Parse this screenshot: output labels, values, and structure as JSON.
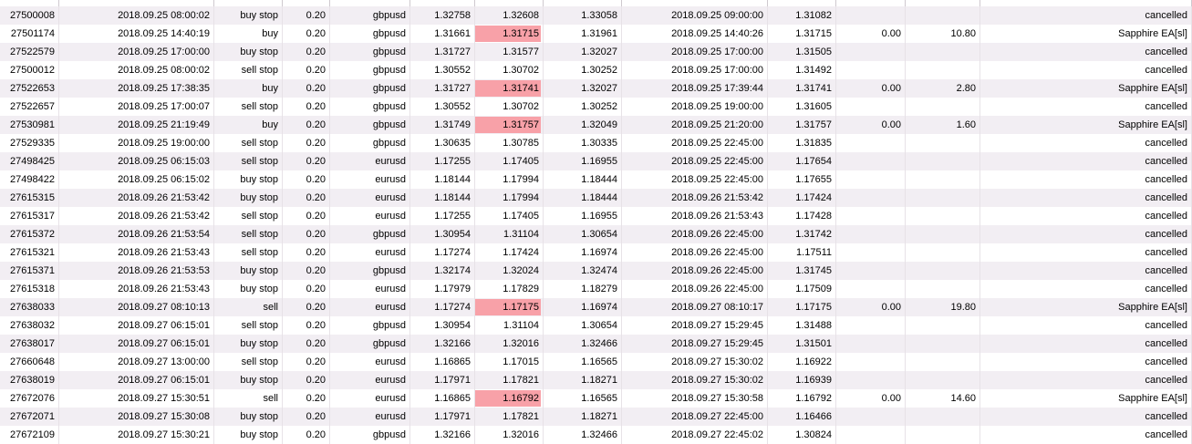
{
  "app": "trade-history-order-list",
  "colors": {
    "sl_hit_highlight": "#f8a1a8",
    "row_stripe": "#f2eef3",
    "grid_line": "#e7e2e7"
  },
  "table": {
    "column_keys": [
      "order",
      "open_time",
      "type",
      "volume",
      "symbol",
      "price",
      "sl",
      "tp",
      "close_time",
      "close_price",
      "commission",
      "profit",
      "comment"
    ],
    "rows": [
      {
        "cells": [
          "27500008",
          "2018.09.25 08:00:02",
          "buy stop",
          "0.20",
          "gbpusd",
          "1.32758",
          "1.32608",
          "1.33058",
          "2018.09.25 09:00:00",
          "1.31082",
          "",
          "",
          "cancelled"
        ],
        "sl_hit": false
      },
      {
        "cells": [
          "27501174",
          "2018.09.25 14:40:19",
          "buy",
          "0.20",
          "gbpusd",
          "1.31661",
          "1.31715",
          "1.31961",
          "2018.09.25 14:40:26",
          "1.31715",
          "0.00",
          "10.80",
          "Sapphire EA[sl]"
        ],
        "sl_hit": true
      },
      {
        "cells": [
          "27522579",
          "2018.09.25 17:00:00",
          "buy stop",
          "0.20",
          "gbpusd",
          "1.31727",
          "1.31577",
          "1.32027",
          "2018.09.25 17:00:00",
          "1.31505",
          "",
          "",
          "cancelled"
        ],
        "sl_hit": false
      },
      {
        "cells": [
          "27500012",
          "2018.09.25 08:00:02",
          "sell stop",
          "0.20",
          "gbpusd",
          "1.30552",
          "1.30702",
          "1.30252",
          "2018.09.25 17:00:00",
          "1.31492",
          "",
          "",
          "cancelled"
        ],
        "sl_hit": false
      },
      {
        "cells": [
          "27522653",
          "2018.09.25 17:38:35",
          "buy",
          "0.20",
          "gbpusd",
          "1.31727",
          "1.31741",
          "1.32027",
          "2018.09.25 17:39:44",
          "1.31741",
          "0.00",
          "2.80",
          "Sapphire EA[sl]"
        ],
        "sl_hit": true
      },
      {
        "cells": [
          "27522657",
          "2018.09.25 17:00:07",
          "sell stop",
          "0.20",
          "gbpusd",
          "1.30552",
          "1.30702",
          "1.30252",
          "2018.09.25 19:00:00",
          "1.31605",
          "",
          "",
          "cancelled"
        ],
        "sl_hit": false
      },
      {
        "cells": [
          "27530981",
          "2018.09.25 21:19:49",
          "buy",
          "0.20",
          "gbpusd",
          "1.31749",
          "1.31757",
          "1.32049",
          "2018.09.25 21:20:00",
          "1.31757",
          "0.00",
          "1.60",
          "Sapphire EA[sl]"
        ],
        "sl_hit": true
      },
      {
        "cells": [
          "27529335",
          "2018.09.25 19:00:00",
          "sell stop",
          "0.20",
          "gbpusd",
          "1.30635",
          "1.30785",
          "1.30335",
          "2018.09.25 22:45:00",
          "1.31835",
          "",
          "",
          "cancelled"
        ],
        "sl_hit": false
      },
      {
        "cells": [
          "27498425",
          "2018.09.25 06:15:03",
          "sell stop",
          "0.20",
          "eurusd",
          "1.17255",
          "1.17405",
          "1.16955",
          "2018.09.25 22:45:00",
          "1.17654",
          "",
          "",
          "cancelled"
        ],
        "sl_hit": false
      },
      {
        "cells": [
          "27498422",
          "2018.09.25 06:15:02",
          "buy stop",
          "0.20",
          "eurusd",
          "1.18144",
          "1.17994",
          "1.18444",
          "2018.09.25 22:45:00",
          "1.17655",
          "",
          "",
          "cancelled"
        ],
        "sl_hit": false
      },
      {
        "cells": [
          "27615315",
          "2018.09.26 21:53:42",
          "buy stop",
          "0.20",
          "eurusd",
          "1.18144",
          "1.17994",
          "1.18444",
          "2018.09.26 21:53:42",
          "1.17424",
          "",
          "",
          "cancelled"
        ],
        "sl_hit": false
      },
      {
        "cells": [
          "27615317",
          "2018.09.26 21:53:42",
          "sell stop",
          "0.20",
          "eurusd",
          "1.17255",
          "1.17405",
          "1.16955",
          "2018.09.26 21:53:43",
          "1.17428",
          "",
          "",
          "cancelled"
        ],
        "sl_hit": false
      },
      {
        "cells": [
          "27615372",
          "2018.09.26 21:53:54",
          "sell stop",
          "0.20",
          "gbpusd",
          "1.30954",
          "1.31104",
          "1.30654",
          "2018.09.26 22:45:00",
          "1.31742",
          "",
          "",
          "cancelled"
        ],
        "sl_hit": false
      },
      {
        "cells": [
          "27615321",
          "2018.09.26 21:53:43",
          "sell stop",
          "0.20",
          "eurusd",
          "1.17274",
          "1.17424",
          "1.16974",
          "2018.09.26 22:45:00",
          "1.17511",
          "",
          "",
          "cancelled"
        ],
        "sl_hit": false
      },
      {
        "cells": [
          "27615371",
          "2018.09.26 21:53:53",
          "buy stop",
          "0.20",
          "gbpusd",
          "1.32174",
          "1.32024",
          "1.32474",
          "2018.09.26 22:45:00",
          "1.31745",
          "",
          "",
          "cancelled"
        ],
        "sl_hit": false
      },
      {
        "cells": [
          "27615318",
          "2018.09.26 21:53:43",
          "buy stop",
          "0.20",
          "eurusd",
          "1.17979",
          "1.17829",
          "1.18279",
          "2018.09.26 22:45:00",
          "1.17509",
          "",
          "",
          "cancelled"
        ],
        "sl_hit": false
      },
      {
        "cells": [
          "27638033",
          "2018.09.27 08:10:13",
          "sell",
          "0.20",
          "eurusd",
          "1.17274",
          "1.17175",
          "1.16974",
          "2018.09.27 08:10:17",
          "1.17175",
          "0.00",
          "19.80",
          "Sapphire EA[sl]"
        ],
        "sl_hit": true
      },
      {
        "cells": [
          "27638032",
          "2018.09.27 06:15:01",
          "sell stop",
          "0.20",
          "gbpusd",
          "1.30954",
          "1.31104",
          "1.30654",
          "2018.09.27 15:29:45",
          "1.31488",
          "",
          "",
          "cancelled"
        ],
        "sl_hit": false
      },
      {
        "cells": [
          "27638017",
          "2018.09.27 06:15:01",
          "buy stop",
          "0.20",
          "gbpusd",
          "1.32166",
          "1.32016",
          "1.32466",
          "2018.09.27 15:29:45",
          "1.31501",
          "",
          "",
          "cancelled"
        ],
        "sl_hit": false
      },
      {
        "cells": [
          "27660648",
          "2018.09.27 13:00:00",
          "sell stop",
          "0.20",
          "eurusd",
          "1.16865",
          "1.17015",
          "1.16565",
          "2018.09.27 15:30:02",
          "1.16922",
          "",
          "",
          "cancelled"
        ],
        "sl_hit": false
      },
      {
        "cells": [
          "27638019",
          "2018.09.27 06:15:01",
          "buy stop",
          "0.20",
          "eurusd",
          "1.17971",
          "1.17821",
          "1.18271",
          "2018.09.27 15:30:02",
          "1.16939",
          "",
          "",
          "cancelled"
        ],
        "sl_hit": false
      },
      {
        "cells": [
          "27672076",
          "2018.09.27 15:30:51",
          "sell",
          "0.20",
          "eurusd",
          "1.16865",
          "1.16792",
          "1.16565",
          "2018.09.27 15:30:58",
          "1.16792",
          "0.00",
          "14.60",
          "Sapphire EA[sl]"
        ],
        "sl_hit": true
      },
      {
        "cells": [
          "27672071",
          "2018.09.27 15:30:08",
          "buy stop",
          "0.20",
          "eurusd",
          "1.17971",
          "1.17821",
          "1.18271",
          "2018.09.27 22:45:00",
          "1.16466",
          "",
          "",
          "cancelled"
        ],
        "sl_hit": false
      },
      {
        "cells": [
          "27672109",
          "2018.09.27 15:30:21",
          "buy stop",
          "0.20",
          "gbpusd",
          "1.32166",
          "1.32016",
          "1.32466",
          "2018.09.27 22:45:02",
          "1.30824",
          "",
          "",
          "cancelled"
        ],
        "sl_hit": false
      }
    ]
  }
}
